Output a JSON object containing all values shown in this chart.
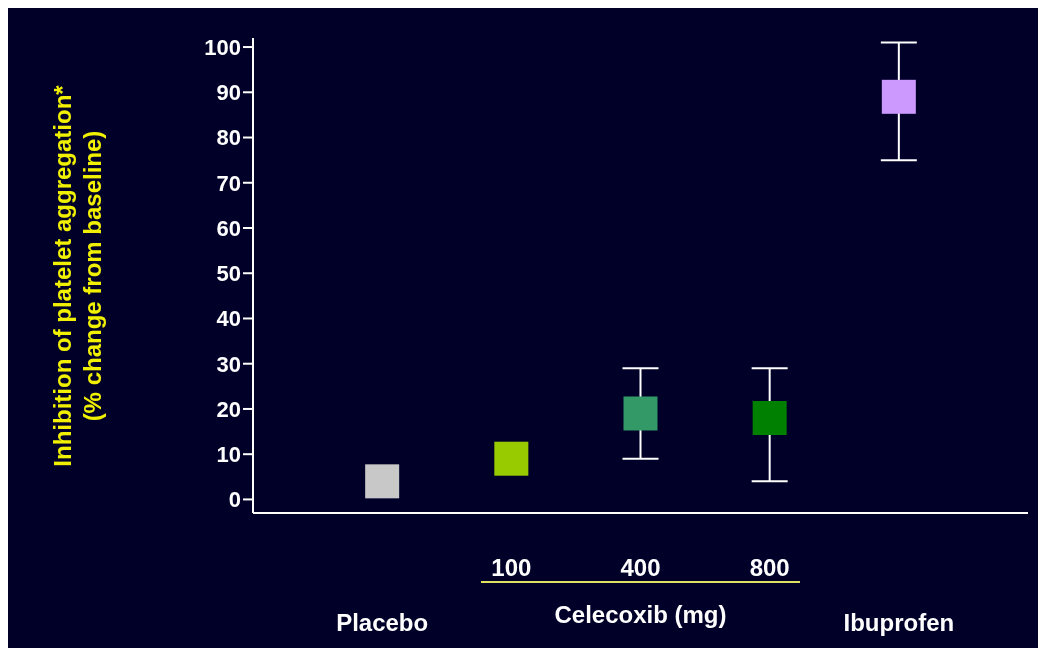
{
  "chart_data": {
    "type": "scatter",
    "ylabel": "Inhibition of platelet aggregation*\n(% change from baseline)",
    "categories": [
      "Placebo",
      "100",
      "400",
      "800",
      "Ibuprofen"
    ],
    "values": [
      4,
      9,
      19,
      18,
      89
    ],
    "colors": [
      "#c8c8c8",
      "#99cc00",
      "#339966",
      "#008000",
      "#cc99ff"
    ],
    "errors": [
      null,
      null,
      [
        9,
        29
      ],
      [
        4,
        29
      ],
      [
        75,
        101
      ]
    ],
    "annotations": [
      "Celecoxib (mg)"
    ],
    "marker": "square",
    "ylim": [
      -3,
      102
    ],
    "yticks": [
      0,
      10,
      20,
      30,
      40,
      50,
      60,
      70,
      80,
      90,
      100
    ],
    "grid": false,
    "legend": false
  }
}
